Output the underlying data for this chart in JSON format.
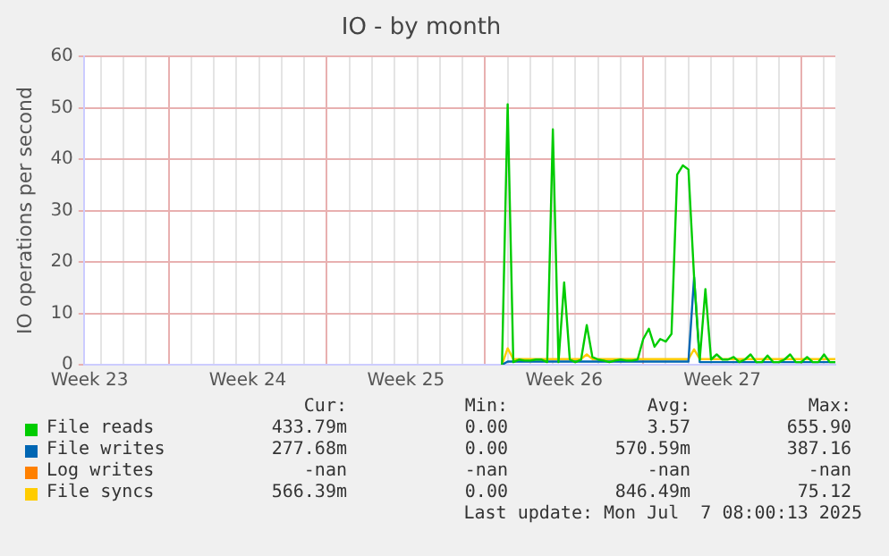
{
  "chart_data": {
    "type": "line",
    "title": "IO - by month",
    "ylabel": "IO operations per second",
    "categories": [
      null,
      "Week 23",
      null,
      null,
      null,
      null,
      null,
      null,
      null,
      null,
      null,
      null,
      null,
      null,
      null,
      null,
      null,
      null,
      null,
      null,
      null,
      null,
      null,
      null,
      null,
      null,
      null,
      null,
      null,
      "Week 24",
      null,
      null,
      null,
      null,
      null,
      null,
      null,
      null,
      null,
      null,
      null,
      null,
      null,
      null,
      null,
      null,
      null,
      null,
      null,
      null,
      null,
      null,
      null,
      null,
      null,
      null,
      null,
      "Week 25",
      null,
      null,
      null,
      null,
      null,
      null,
      null,
      null,
      null,
      null,
      null,
      null,
      null,
      null,
      null,
      null,
      null,
      null,
      null,
      null,
      null,
      null,
      null,
      null,
      null,
      null,
      null,
      "Week 26",
      null,
      null,
      null,
      null,
      null,
      null,
      null,
      null,
      null,
      null,
      null,
      null,
      null,
      null,
      null,
      null,
      null,
      null,
      null,
      null,
      null,
      null,
      null,
      null,
      null,
      null,
      null,
      "Week 27",
      null,
      null,
      null,
      null,
      null,
      null,
      null,
      null,
      null,
      null,
      null,
      null,
      null,
      null,
      null,
      null,
      null,
      null,
      null,
      null
    ],
    "ylim": [
      0,
      60
    ],
    "yticks": [
      0,
      10,
      20,
      30,
      40,
      50,
      60
    ],
    "grid": true,
    "legend": "bottom",
    "marker": "none",
    "series": [
      {
        "name": "File reads",
        "color": "#00cc00",
        "values": [
          null,
          null,
          null,
          null,
          null,
          null,
          null,
          null,
          null,
          null,
          null,
          null,
          null,
          null,
          null,
          null,
          null,
          null,
          null,
          null,
          null,
          null,
          null,
          null,
          null,
          null,
          null,
          null,
          null,
          null,
          null,
          null,
          null,
          null,
          null,
          null,
          null,
          null,
          null,
          null,
          null,
          null,
          null,
          null,
          null,
          null,
          null,
          null,
          null,
          null,
          null,
          null,
          null,
          null,
          null,
          null,
          null,
          null,
          null,
          null,
          null,
          null,
          null,
          null,
          null,
          null,
          null,
          null,
          null,
          null,
          null,
          null,
          null,
          null,
          0,
          50.7,
          0.5,
          1,
          0.8,
          0.8,
          1,
          1,
          0.5,
          45.8,
          0.5,
          16,
          1,
          0.5,
          1,
          7.7,
          1.5,
          1,
          0.8,
          0.5,
          0.8,
          1,
          0.8,
          0.8,
          1,
          5,
          7,
          3.5,
          5,
          4.5,
          6,
          37,
          38.8,
          38,
          17,
          1,
          14.7,
          1,
          2,
          1,
          1,
          1.5,
          0.5,
          1,
          2,
          0.5,
          0.5,
          1.8,
          0.5,
          0.5,
          1,
          2,
          0.5,
          0.5,
          1.5,
          0.5,
          0.5,
          2,
          0.5,
          0.5
        ]
      },
      {
        "name": "File writes",
        "color": "#0066b3",
        "values": [
          null,
          null,
          null,
          null,
          null,
          null,
          null,
          null,
          null,
          null,
          null,
          null,
          null,
          null,
          null,
          null,
          null,
          null,
          null,
          null,
          null,
          null,
          null,
          null,
          null,
          null,
          null,
          null,
          null,
          null,
          null,
          null,
          null,
          null,
          null,
          null,
          null,
          null,
          null,
          null,
          null,
          null,
          null,
          null,
          null,
          null,
          null,
          null,
          null,
          null,
          null,
          null,
          null,
          null,
          null,
          null,
          null,
          null,
          null,
          null,
          null,
          null,
          null,
          null,
          null,
          null,
          null,
          null,
          null,
          null,
          null,
          null,
          null,
          null,
          0,
          0.6,
          0.6,
          0.6,
          0.6,
          0.6,
          0.6,
          0.6,
          0.6,
          0.6,
          0.6,
          0.6,
          0.6,
          0.6,
          0.6,
          0.6,
          0.6,
          0.6,
          0.6,
          0.6,
          0.6,
          0.6,
          0.6,
          0.6,
          0.6,
          0.6,
          0.6,
          0.6,
          0.6,
          0.6,
          0.6,
          0.6,
          0.6,
          0.6,
          17,
          0.5,
          0.5,
          0.5,
          0.5,
          0.5,
          0.5,
          0.5,
          0.5,
          0.5,
          0.5,
          0.5,
          0.5,
          0.5,
          0.5,
          0.5,
          0.5,
          0.5,
          0.5,
          0.5,
          0.5,
          0.5,
          0.5,
          0.5,
          0.5,
          0.5
        ]
      },
      {
        "name": "Log writes",
        "color": "#ff8000",
        "values": [
          null,
          null,
          null,
          null,
          null,
          null,
          null,
          null,
          null,
          null,
          null,
          null,
          null,
          null,
          null,
          null,
          null,
          null,
          null,
          null,
          null,
          null,
          null,
          null,
          null,
          null,
          null,
          null,
          null,
          null,
          null,
          null,
          null,
          null,
          null,
          null,
          null,
          null,
          null,
          null,
          null,
          null,
          null,
          null,
          null,
          null,
          null,
          null,
          null,
          null,
          null,
          null,
          null,
          null,
          null,
          null,
          null,
          null,
          null,
          null,
          null,
          null,
          null,
          null,
          null,
          null,
          null,
          null,
          null,
          null,
          null,
          null,
          null,
          null,
          null,
          null,
          null,
          null,
          null,
          null,
          null,
          null,
          null,
          null,
          null,
          null,
          null,
          null,
          null,
          null,
          null,
          null,
          null,
          null,
          null,
          null,
          null,
          null,
          null,
          null,
          null,
          null,
          null,
          null,
          null,
          null,
          null,
          null,
          null,
          null,
          null,
          null,
          null,
          null,
          null,
          null,
          null,
          null,
          null,
          null,
          null,
          null,
          null,
          null,
          null,
          null,
          null,
          null,
          null,
          null,
          null,
          null,
          null,
          null
        ]
      },
      {
        "name": "File syncs",
        "color": "#ffcc00",
        "values": [
          null,
          null,
          null,
          null,
          null,
          null,
          null,
          null,
          null,
          null,
          null,
          null,
          null,
          null,
          null,
          null,
          null,
          null,
          null,
          null,
          null,
          null,
          null,
          null,
          null,
          null,
          null,
          null,
          null,
          null,
          null,
          null,
          null,
          null,
          null,
          null,
          null,
          null,
          null,
          null,
          null,
          null,
          null,
          null,
          null,
          null,
          null,
          null,
          null,
          null,
          null,
          null,
          null,
          null,
          null,
          null,
          null,
          null,
          null,
          null,
          null,
          null,
          null,
          null,
          null,
          null,
          null,
          null,
          null,
          null,
          null,
          null,
          null,
          null,
          0,
          3.2,
          1.1,
          1.1,
          1.1,
          1.1,
          1.1,
          1.1,
          1.1,
          1.1,
          1.1,
          1.1,
          1.1,
          1.1,
          1.1,
          2,
          1.1,
          1.1,
          1.1,
          1.1,
          1.1,
          1.1,
          1.1,
          1.1,
          1.1,
          1.1,
          1.1,
          1.1,
          1.1,
          1.1,
          1.1,
          1.1,
          1.1,
          1.1,
          3,
          1.1,
          1.1,
          1.1,
          1.1,
          1.1,
          1.1,
          1.1,
          1.1,
          1.1,
          1.1,
          1.1,
          1.1,
          1.1,
          1.1,
          1.1,
          1.1,
          1.1,
          1.1,
          1.1,
          1.1,
          1.1,
          1.1,
          1.1,
          1.1,
          1.1
        ]
      }
    ],
    "annotations": [
      "Cur:",
      "Min:",
      "Avg:",
      "Max:",
      "433.79m",
      "0.00",
      "3.57",
      "655.90",
      "277.68m",
      "0.00",
      "570.59m",
      "387.16",
      "-nan",
      "-nan",
      "-nan",
      "-nan",
      "566.39m",
      "0.00",
      "846.49m",
      "75.12",
      "Last update: Mon Jul  7 08:00:13 2025"
    ]
  }
}
